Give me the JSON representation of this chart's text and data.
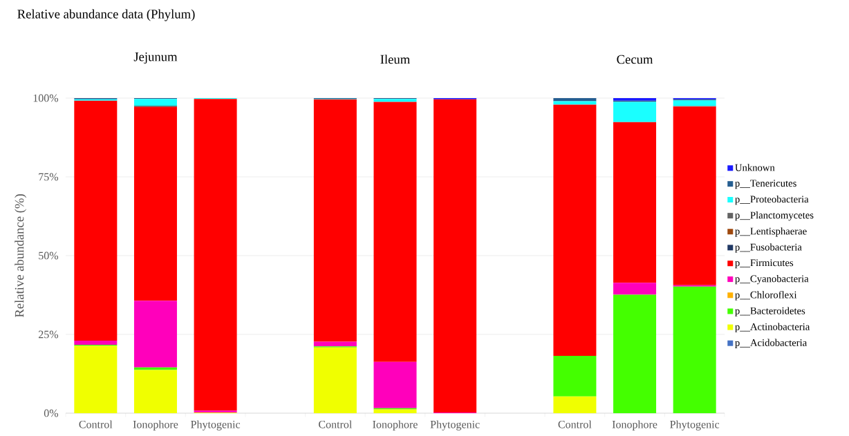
{
  "chart_data": {
    "type": "bar",
    "stacked": true,
    "title": "Relative abundance data (Phylum)",
    "ylabel": "Relative abundance (%)",
    "annotations": [
      "Jejunum",
      "Ileum",
      "Cecum"
    ],
    "categories": [
      "Control",
      "Ionophore",
      "Phytogenic",
      null,
      "Control",
      "Ionophore",
      "Phytogenic",
      null,
      "Control",
      "Ionophore",
      "Phytogenic"
    ],
    "ylim": [
      0,
      100
    ],
    "yticks": [
      {
        "value": 0,
        "label": "0%"
      },
      {
        "value": 25,
        "label": "25%"
      },
      {
        "value": 50,
        "label": "50%"
      },
      {
        "value": 75,
        "label": "75%"
      },
      {
        "value": 100,
        "label": "100%"
      }
    ],
    "grid": "y",
    "legend": "right",
    "series": [
      {
        "name": "p__Acidobacteria",
        "color": "#4472c4",
        "values": [
          0,
          0,
          0,
          null,
          0,
          0,
          0,
          null,
          0,
          0,
          0
        ]
      },
      {
        "name": "p__Actinobacteria",
        "color": "#f0ff00",
        "values": [
          21.4,
          13.7,
          0.2,
          null,
          20.9,
          1.2,
          0,
          null,
          5.3,
          0,
          0
        ]
      },
      {
        "name": "p__Bacteroidetes",
        "color": "#44ff00",
        "values": [
          0.3,
          0.8,
          0,
          null,
          0.3,
          0.4,
          0,
          null,
          12.9,
          37.6,
          40.2
        ]
      },
      {
        "name": "p__Chloroflexi",
        "color": "#ffb000",
        "values": [
          0,
          0,
          0,
          null,
          0,
          0,
          0,
          null,
          0,
          0,
          0
        ]
      },
      {
        "name": "p__Cyanobacteria",
        "color": "#ff00bb",
        "values": [
          1.3,
          21.2,
          0.6,
          null,
          1.5,
          14.7,
          0.2,
          null,
          0,
          3.8,
          0.4
        ]
      },
      {
        "name": "p__Firmicutes",
        "color": "#ff0000",
        "values": [
          76.2,
          61.5,
          98.9,
          null,
          76.9,
          82.5,
          99.4,
          null,
          79.7,
          51.0,
          56.7
        ]
      },
      {
        "name": "p__Fusobacteria",
        "color": "#203864",
        "values": [
          0,
          0,
          0,
          null,
          0,
          0,
          0,
          null,
          0,
          0,
          0
        ]
      },
      {
        "name": "p__Lentisphaerae",
        "color": "#9e480e",
        "values": [
          0,
          0,
          0,
          null,
          0,
          0,
          0,
          null,
          0,
          0,
          0
        ]
      },
      {
        "name": "p__Planctomycetes",
        "color": "#636363",
        "values": [
          0,
          0.4,
          0,
          null,
          0,
          0,
          0,
          null,
          0,
          0,
          0.2
        ]
      },
      {
        "name": "p__Proteobacteria",
        "color": "#1affff",
        "values": [
          0.4,
          2.1,
          0.3,
          null,
          0.2,
          0.9,
          0,
          null,
          1.1,
          6.4,
          1.8
        ]
      },
      {
        "name": "p__Tenericutes",
        "color": "#255e91",
        "values": [
          0.4,
          0.3,
          0,
          null,
          0.2,
          0.3,
          0,
          null,
          1.0,
          0.4,
          0.3
        ]
      },
      {
        "name": "Unknown",
        "color": "#1a1aff",
        "values": [
          0,
          0,
          0,
          null,
          0,
          0,
          0.4,
          null,
          0,
          0.8,
          0.4
        ]
      }
    ]
  }
}
